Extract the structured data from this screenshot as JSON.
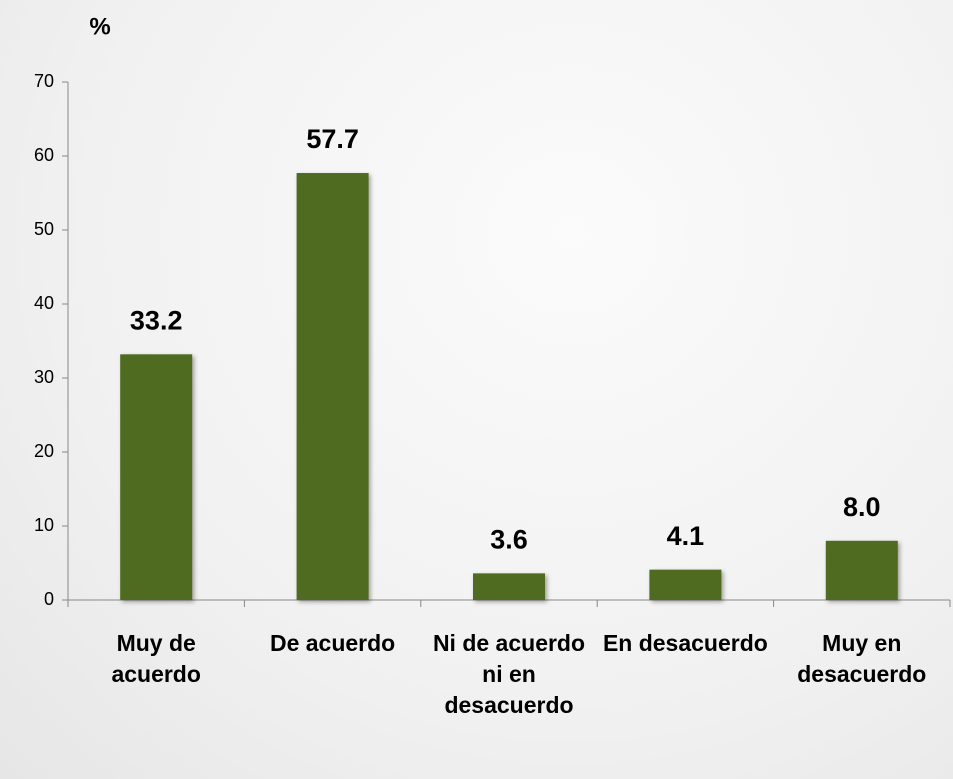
{
  "chart_data": {
    "type": "bar",
    "y_label": "%",
    "categories": [
      "Muy de acuerdo",
      "De acuerdo",
      "Ni de acuerdo ni en desacuerdo",
      "En desacuerdo",
      "Muy en desacuerdo"
    ],
    "values": [
      33.2,
      57.7,
      3.6,
      4.1,
      8.0
    ],
    "value_labels": [
      "33.2",
      "57.7",
      "3.6",
      "4.1",
      "8.0"
    ],
    "color": "#4e6b1f",
    "ylim": [
      0,
      70
    ],
    "yticks": [
      0,
      10,
      20,
      30,
      40,
      50,
      60,
      70
    ],
    "grid": false
  }
}
